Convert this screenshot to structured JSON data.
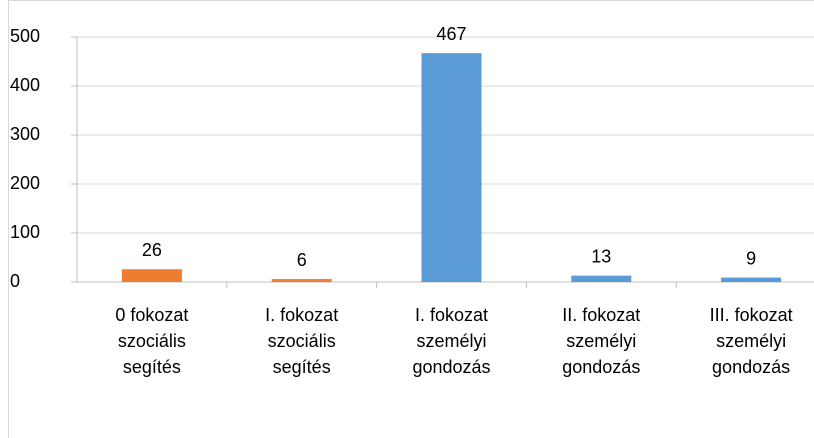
{
  "chart_data": {
    "type": "bar",
    "categories": [
      "0 fokozat\nszociális\nsegítés",
      "I. fokozat\nszociális\nsegítés",
      "I. fokozat\nszemélyi\ngondozás",
      "II. fokozat\nszemélyi\ngondozás",
      "III. fokozat\nszemélyi\ngondozás"
    ],
    "values": [
      26,
      6,
      467,
      13,
      9
    ],
    "colors": [
      "#ed7d31",
      "#ed7d31",
      "#5b9bd5",
      "#5b9bd5",
      "#5b9bd5"
    ],
    "ylim": [
      0,
      500
    ],
    "yticks": [
      0,
      100,
      200,
      300,
      400,
      500
    ],
    "grid": true
  }
}
